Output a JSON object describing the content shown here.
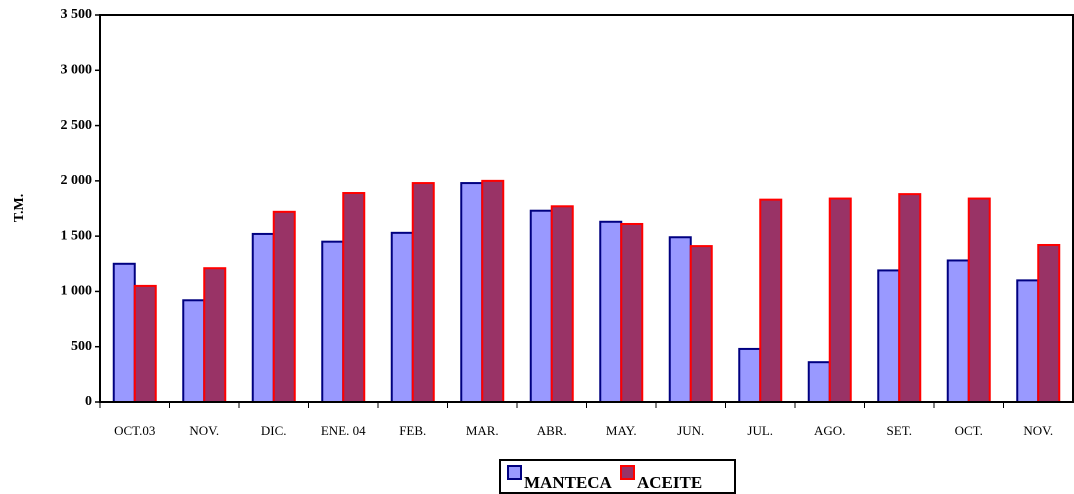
{
  "chart_data": {
    "type": "bar",
    "y_label": "T.M.",
    "categories": [
      "OCT.03",
      "NOV.",
      "DIC.",
      "ENE.   04",
      "FEB.",
      "MAR.",
      "ABR.",
      "MAY.",
      "JUN.",
      "JUL.",
      "AGO.",
      "SET.",
      "OCT.",
      "NOV."
    ],
    "series": [
      {
        "name": "MANTECA",
        "color": "#9999ff",
        "values": [
          1250,
          920,
          1520,
          1450,
          1530,
          1980,
          1730,
          1630,
          1490,
          480,
          360,
          1190,
          1280,
          1100
        ]
      },
      {
        "name": "ACEITE",
        "color": "#993366",
        "values": [
          1050,
          1210,
          1720,
          1890,
          1980,
          2000,
          1770,
          1610,
          1410,
          1830,
          1840,
          1880,
          1840,
          1420
        ]
      }
    ],
    "ylim": [
      0,
      3500
    ],
    "yticks": [
      0,
      {
        "value": 500,
        "label": "500"
      },
      {
        "value": 1000,
        "label": "1 000"
      },
      {
        "value": 1500,
        "label": "1 500"
      },
      {
        "value": 2000,
        "label": "2 000"
      },
      {
        "value": 2500,
        "label": "2 500"
      },
      {
        "value": 3000,
        "label": "3 000"
      },
      {
        "value": 3500,
        "label": "3 500"
      }
    ],
    "legend": "bottom"
  }
}
